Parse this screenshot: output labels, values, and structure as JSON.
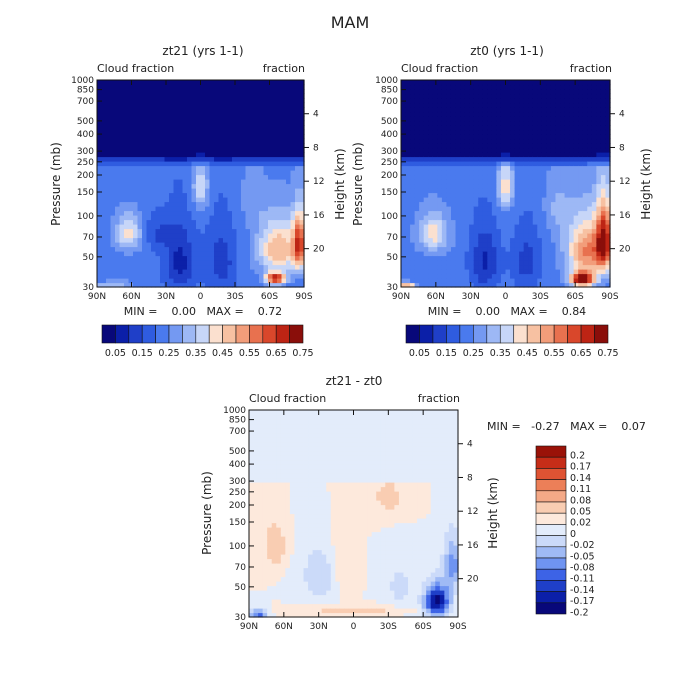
{
  "main_title": "MAM",
  "colors": {
    "seq": [
      "#08087a",
      "#0b1fa8",
      "#1f3fc8",
      "#2f5ce0",
      "#4a7aee",
      "#7499f2",
      "#9db8f5",
      "#c7d6f8",
      "#fbe0cf",
      "#f7c1a2",
      "#f29d7a",
      "#e8714f",
      "#d9472b",
      "#bd2414",
      "#8a0e0a"
    ],
    "div": [
      "#08087a",
      "#0b1fa8",
      "#1f3fc8",
      "#3d63e6",
      "#6f94f1",
      "#9fbaf5",
      "#cbdaf9",
      "#e3ecfb",
      "#fde9dc",
      "#f9cdb2",
      "#f4a987",
      "#ec7f58",
      "#df5333",
      "#c62d18",
      "#9a1208"
    ]
  },
  "chart_data": [
    {
      "id": "zt21",
      "type": "heatmap",
      "title": "zt21 (yrs 1-1)",
      "left_label": "Cloud fraction",
      "right_label": "fraction",
      "ylabel": "Pressure (mb)",
      "y2label": "Height (km)",
      "x_ticks": [
        "90N",
        "60N",
        "30N",
        "0",
        "30S",
        "60S",
        "90S"
      ],
      "p_ticks": [
        {
          "v": 1000,
          "l": "1000"
        },
        {
          "v": 850,
          "l": "850"
        },
        {
          "v": 700,
          "l": "700"
        },
        {
          "v": 500,
          "l": "500"
        },
        {
          "v": 400,
          "l": "400"
        },
        {
          "v": 300,
          "l": "300"
        },
        {
          "v": 250,
          "l": "250"
        },
        {
          "v": 200,
          "l": "200"
        },
        {
          "v": 150,
          "l": "150"
        },
        {
          "v": 100,
          "l": "100"
        },
        {
          "v": 70,
          "l": "70"
        },
        {
          "v": 50,
          "l": "50"
        },
        {
          "v": 30,
          "l": "30"
        }
      ],
      "h_ticks": [
        {
          "v": 4,
          "l": "4"
        },
        {
          "v": 8,
          "l": "8"
        },
        {
          "v": 12,
          "l": "12"
        },
        {
          "v": 16,
          "l": "16"
        },
        {
          "v": 20,
          "l": "20"
        }
      ],
      "minmax": "MIN =    0.00   MAX =    0.72",
      "min": 0.0,
      "max": 0.72,
      "colorbar_labels": [
        "0.05",
        "0.15",
        "0.25",
        "0.35",
        "0.45",
        "0.55",
        "0.65",
        "0.75"
      ]
    },
    {
      "id": "zt0",
      "type": "heatmap",
      "title": "zt0 (yrs 1-1)",
      "left_label": "Cloud fraction",
      "right_label": "fraction",
      "ylabel": "Pressure (mb)",
      "y2label": "Height (km)",
      "x_ticks": [
        "90N",
        "60N",
        "30N",
        "0",
        "30S",
        "60S",
        "90S"
      ],
      "p_ticks": [
        {
          "v": 1000,
          "l": "1000"
        },
        {
          "v": 850,
          "l": "850"
        },
        {
          "v": 700,
          "l": "700"
        },
        {
          "v": 500,
          "l": "500"
        },
        {
          "v": 400,
          "l": "400"
        },
        {
          "v": 300,
          "l": "300"
        },
        {
          "v": 250,
          "l": "250"
        },
        {
          "v": 200,
          "l": "200"
        },
        {
          "v": 150,
          "l": "150"
        },
        {
          "v": 100,
          "l": "100"
        },
        {
          "v": 70,
          "l": "70"
        },
        {
          "v": 50,
          "l": "50"
        },
        {
          "v": 30,
          "l": "30"
        }
      ],
      "h_ticks": [
        {
          "v": 4,
          "l": "4"
        },
        {
          "v": 8,
          "l": "8"
        },
        {
          "v": 12,
          "l": "12"
        },
        {
          "v": 16,
          "l": "16"
        },
        {
          "v": 20,
          "l": "20"
        }
      ],
      "minmax": "MIN =    0.00   MAX =    0.84",
      "min": 0.0,
      "max": 0.84,
      "colorbar_labels": [
        "0.05",
        "0.15",
        "0.25",
        "0.35",
        "0.45",
        "0.55",
        "0.65",
        "0.75"
      ]
    },
    {
      "id": "diff",
      "type": "heatmap",
      "title": "zt21 - zt0",
      "left_label": "Cloud fraction",
      "right_label": "fraction",
      "ylabel": "Pressure (mb)",
      "y2label": "Height (km)",
      "x_ticks": [
        "90N",
        "60N",
        "30N",
        "0",
        "30S",
        "60S",
        "90S"
      ],
      "p_ticks": [
        {
          "v": 1000,
          "l": "1000"
        },
        {
          "v": 850,
          "l": "850"
        },
        {
          "v": 700,
          "l": "700"
        },
        {
          "v": 500,
          "l": "500"
        },
        {
          "v": 400,
          "l": "400"
        },
        {
          "v": 300,
          "l": "300"
        },
        {
          "v": 250,
          "l": "250"
        },
        {
          "v": 200,
          "l": "200"
        },
        {
          "v": 150,
          "l": "150"
        },
        {
          "v": 100,
          "l": "100"
        },
        {
          "v": 70,
          "l": "70"
        },
        {
          "v": 50,
          "l": "50"
        },
        {
          "v": 30,
          "l": "30"
        }
      ],
      "h_ticks": [
        {
          "v": 4,
          "l": "4"
        },
        {
          "v": 8,
          "l": "8"
        },
        {
          "v": 12,
          "l": "12"
        },
        {
          "v": 16,
          "l": "16"
        },
        {
          "v": 20,
          "l": "20"
        }
      ],
      "minmax": "MIN =   -0.27   MAX =    0.07",
      "min": -0.27,
      "max": 0.07,
      "colorbar_labels": [
        "0.2",
        "0.17",
        "0.14",
        "0.11",
        "0.08",
        "0.05",
        "0.02",
        "0",
        "-0.02",
        "-0.05",
        "-0.08",
        "-0.11",
        "-0.14",
        "-0.17",
        "-0.2"
      ]
    }
  ]
}
